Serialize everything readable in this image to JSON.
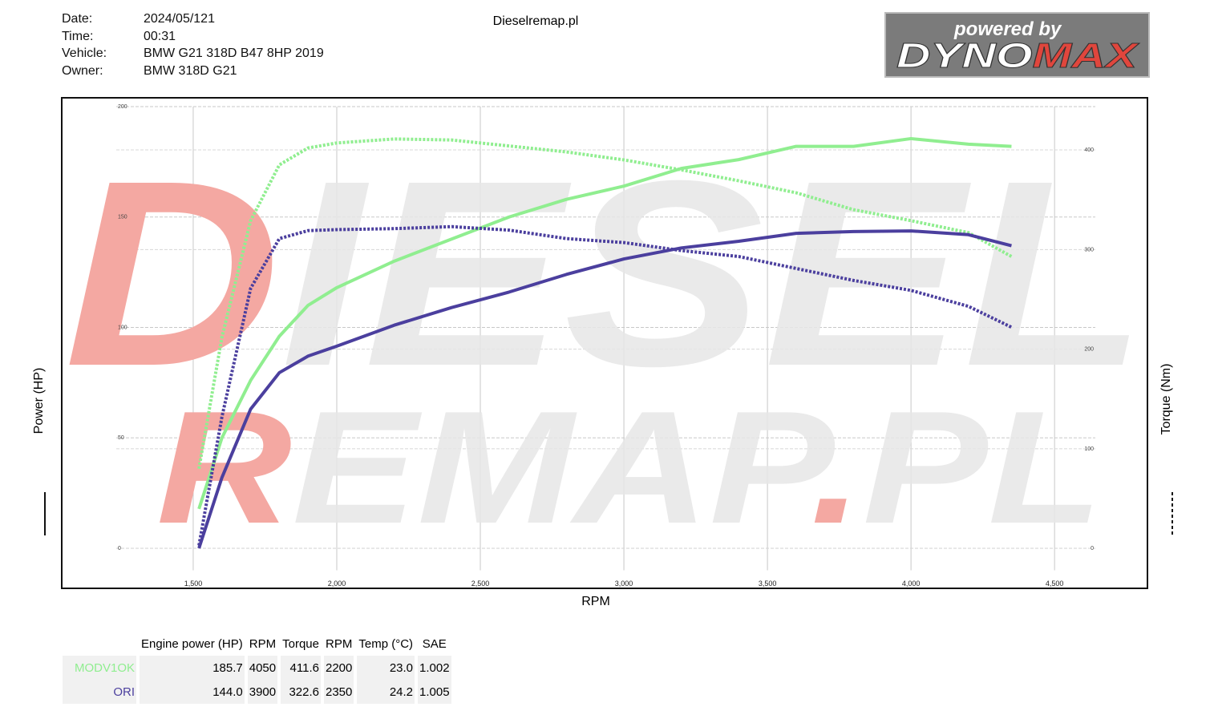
{
  "header": {
    "fields": [
      {
        "label": "Date:",
        "value": "2024/05/121"
      },
      {
        "label": "Time:",
        "value": "00:31"
      },
      {
        "label": "Vehicle:",
        "value": "BMW G21 318D B47 8HP 2019"
      },
      {
        "label": "Owner:",
        "value": "BMW 318D G21"
      }
    ],
    "site": "Dieselremap.pl",
    "logo": {
      "top": "powered by",
      "part1": "DYNO",
      "part2": "MAX"
    }
  },
  "watermark": {
    "line1": [
      "D",
      "IESEL"
    ],
    "line2": [
      "R",
      "EMAP",
      ".",
      "PL"
    ]
  },
  "chart_data": {
    "type": "line",
    "x_label": "RPM",
    "y_label": "Power (HP)",
    "y2_label": "Torque (Nm)",
    "x": [
      1520,
      1600,
      1700,
      1800,
      1900,
      2000,
      2200,
      2400,
      2600,
      2800,
      3000,
      3200,
      3400,
      3600,
      3800,
      4000,
      4200,
      4350
    ],
    "series": [
      {
        "name": "MODV1OK",
        "color": "#90ee90",
        "values": [
          17.8,
          50,
          76,
          96,
          110,
          118,
          130,
          140,
          150,
          158,
          164,
          172,
          176,
          182,
          182,
          185.5,
          183,
          182
        ],
        "torque": [
          80,
          212,
          329,
          385,
          402,
          407,
          411,
          410,
          404,
          398,
          390,
          380,
          369,
          357,
          340,
          329,
          317,
          293
        ]
      },
      {
        "name": "ORI",
        "color": "#4b3f9e",
        "values": [
          0,
          32,
          63,
          79.5,
          87,
          91.5,
          101,
          109,
          116,
          124,
          131,
          136,
          139,
          142.6,
          143.4,
          143.7,
          142,
          137
        ],
        "torque": [
          3,
          132,
          261,
          311,
          319,
          320,
          321,
          323,
          319.5,
          311,
          307,
          299,
          293,
          281,
          269,
          259,
          243,
          222
        ]
      }
    ],
    "xlim": [
      1232,
      4642
    ],
    "ylim": [
      -10,
      200
    ],
    "y2lim": [
      -22,
      443.5
    ],
    "xticks": [
      {
        "value": 1500,
        "label": "1,500"
      },
      {
        "value": 2000,
        "label": "2,000"
      },
      {
        "value": 2500,
        "label": "2,500"
      },
      {
        "value": 3000,
        "label": "3,000"
      },
      {
        "value": 3500,
        "label": "3,500"
      },
      {
        "value": 4000,
        "label": "4,000"
      },
      {
        "value": 4500,
        "label": "4,500"
      }
    ],
    "yticks": [
      0,
      50,
      100,
      150,
      200
    ],
    "y2ticks": [
      0,
      100,
      200,
      300,
      400
    ],
    "grid": true
  },
  "table": {
    "columns": [
      "Engine power (HP)",
      "RPM",
      "Torque",
      "RPM",
      "Temp (°C)",
      "SAE"
    ],
    "rows": [
      [
        "185.7",
        "4050",
        "411.6",
        "2200",
        "23.0",
        "1.002"
      ],
      [
        "144.0",
        "3900",
        "322.6",
        "2350",
        "24.2",
        "1.005"
      ]
    ]
  }
}
